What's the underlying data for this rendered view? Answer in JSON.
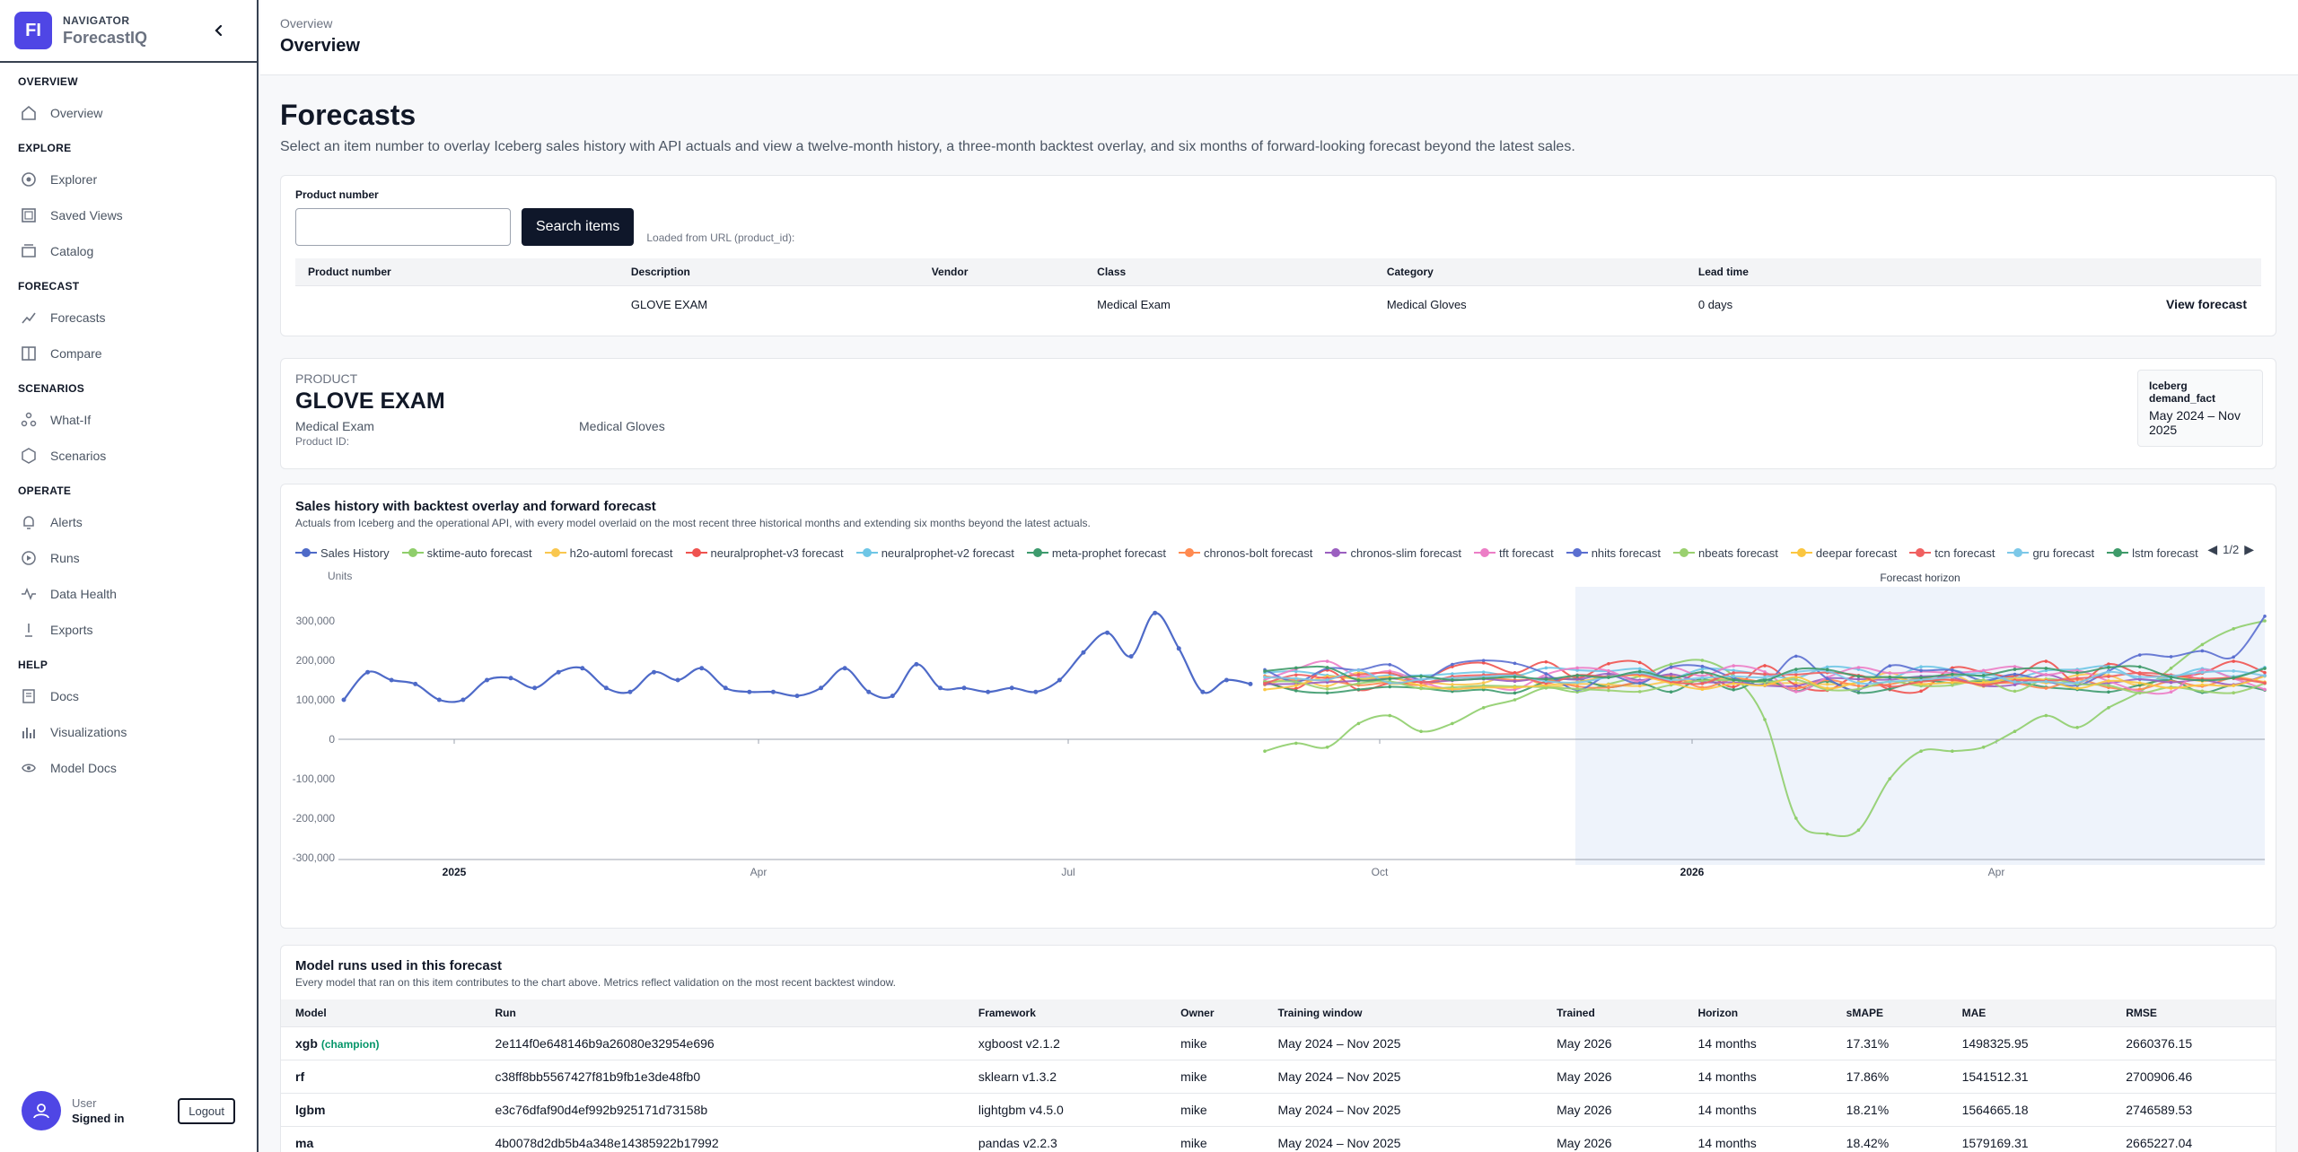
{
  "brand": {
    "initials": "FI",
    "kicker": "NAVIGATOR",
    "name": "ForecastIQ"
  },
  "nav": {
    "sections": [
      {
        "title": "OVERVIEW",
        "items": [
          {
            "label": "Overview",
            "icon": "home-icon"
          }
        ]
      },
      {
        "title": "EXPLORE",
        "items": [
          {
            "label": "Explorer",
            "icon": "explorer-icon"
          },
          {
            "label": "Saved Views",
            "icon": "saved-views-icon"
          },
          {
            "label": "Catalog",
            "icon": "catalog-icon"
          }
        ]
      },
      {
        "title": "FORECAST",
        "items": [
          {
            "label": "Forecasts",
            "icon": "forecasts-icon"
          },
          {
            "label": "Compare",
            "icon": "compare-icon"
          }
        ]
      },
      {
        "title": "SCENARIOS",
        "items": [
          {
            "label": "What-If",
            "icon": "what-if-icon"
          },
          {
            "label": "Scenarios",
            "icon": "scenarios-icon"
          }
        ]
      },
      {
        "title": "OPERATE",
        "items": [
          {
            "label": "Alerts",
            "icon": "alerts-icon"
          },
          {
            "label": "Runs",
            "icon": "runs-icon"
          },
          {
            "label": "Data Health",
            "icon": "data-health-icon"
          },
          {
            "label": "Exports",
            "icon": "exports-icon"
          }
        ]
      },
      {
        "title": "HELP",
        "items": [
          {
            "label": "Docs",
            "icon": "docs-icon"
          },
          {
            "label": "Visualizations",
            "icon": "visualizations-icon"
          },
          {
            "label": "Model Docs",
            "icon": "model-docs-icon"
          }
        ]
      }
    ]
  },
  "user": {
    "name": "User",
    "status": "Signed in",
    "logout": "Logout"
  },
  "topbar": {
    "breadcrumb": "Overview",
    "title": "Overview"
  },
  "page": {
    "title": "Forecasts",
    "subtitle": "Select an item number to overlay Iceberg sales history with API actuals and view a twelve-month history, a three-month backtest overlay, and six months of forward-looking forecast beyond the latest sales."
  },
  "search": {
    "label": "Product number",
    "value": "",
    "button": "Search items",
    "note": "Loaded from URL (product_id):",
    "columns": [
      "Product number",
      "Description",
      "Vendor",
      "Class",
      "Category",
      "Lead time"
    ],
    "row": {
      "product_number": "",
      "description": "GLOVE EXAM",
      "vendor": "",
      "class": "Medical Exam",
      "category": "Medical Gloves",
      "lead_time": "0 days",
      "action": "View forecast"
    }
  },
  "product": {
    "kicker": "PRODUCT",
    "name": "GLOVE EXAM",
    "class": "Medical Exam",
    "category": "Medical Gloves",
    "id_label": "Product ID:",
    "source_title": "Iceberg demand_fact",
    "source_range": "May 2024 – Nov 2025"
  },
  "chart": {
    "title": "Sales history with backtest overlay and forward forecast",
    "subtitle": "Actuals from Iceberg and the operational API, with every model overlaid on the most recent three historical months and extending six months beyond the latest actuals.",
    "pager": "1/2",
    "horizon_label": "Forecast horizon",
    "ylabel": "Units",
    "y_ticks": [
      "300,000",
      "200,000",
      "100,000",
      "0",
      "-100,000",
      "-200,000",
      "-300,000"
    ],
    "y_values": [
      300000,
      200000,
      100000,
      0,
      -100000,
      -200000,
      -300000
    ],
    "x_ticks": [
      "2025",
      "Apr",
      "Jul",
      "Oct",
      "2026",
      "Apr"
    ],
    "bold_ticks": [
      "2025",
      "2026"
    ]
  },
  "chart_data": {
    "type": "line",
    "ylim": [
      -300000,
      300000
    ],
    "legend": "top",
    "grid": false,
    "series": [
      {
        "name": "Sales History",
        "color": "#4e6ac8"
      },
      {
        "name": "sktime-auto forecast",
        "color": "#8fce6b"
      },
      {
        "name": "h2o-automl forecast",
        "color": "#f9c74f"
      },
      {
        "name": "neuralprophet-v3 forecast",
        "color": "#ef5350"
      },
      {
        "name": "neuralprophet-v2 forecast",
        "color": "#6ec6e6"
      },
      {
        "name": "meta-prophet forecast",
        "color": "#3e9b6e"
      },
      {
        "name": "chronos-bolt forecast",
        "color": "#ff8a50"
      },
      {
        "name": "chronos-slim forecast",
        "color": "#9b5fc0"
      },
      {
        "name": "tft forecast",
        "color": "#ec7ec6"
      },
      {
        "name": "nhits forecast",
        "color": "#5b6fd0"
      },
      {
        "name": "nbeats forecast",
        "color": "#9ad06f"
      },
      {
        "name": "deepar forecast",
        "color": "#fbc640"
      },
      {
        "name": "tcn forecast",
        "color": "#f06060"
      },
      {
        "name": "gru forecast",
        "color": "#7cc8e8"
      },
      {
        "name": "lstm forecast",
        "color": "#3f9b6a"
      }
    ],
    "history_values": [
      100000,
      170000,
      150000,
      140000,
      100000,
      100000,
      150000,
      155000,
      130000,
      170000,
      180000,
      130000,
      120000,
      170000,
      150000,
      180000,
      130000,
      120000,
      120000,
      110000,
      130000,
      180000,
      120000,
      110000,
      190000,
      130000,
      130000,
      120000,
      130000,
      120000,
      150000,
      220000,
      270000,
      210000,
      320000,
      230000,
      120000,
      150000,
      140000
    ],
    "sktime_values": [
      -30000,
      -10000,
      -20000,
      40000,
      60000,
      20000,
      40000,
      80000,
      100000,
      130000,
      120000,
      140000,
      160000,
      190000,
      200000,
      160000,
      50000,
      -200000,
      -240000,
      -230000,
      -100000,
      -30000,
      -30000,
      -20000,
      20000,
      60000,
      30000,
      80000,
      120000,
      180000,
      240000,
      280000,
      300000
    ]
  },
  "runs": {
    "title": "Model runs used in this forecast",
    "subtitle": "Every model that ran on this item contributes to the chart above. Metrics reflect validation on the most recent backtest window.",
    "columns": [
      "Model",
      "Run",
      "Framework",
      "Owner",
      "Training window",
      "Trained",
      "Horizon",
      "sMAPE",
      "MAE",
      "RMSE"
    ],
    "champion_label": "(champion)",
    "rows": [
      {
        "model": "xgb",
        "champion": true,
        "run": "2e114f0e648146b9a26080e32954e696",
        "framework": "xgboost v2.1.2",
        "owner": "mike",
        "window": "May 2024 – Nov 2025",
        "trained": "May 2026",
        "horizon": "14 months",
        "smape": "17.31%",
        "mae": "1498325.95",
        "rmse": "2660376.15"
      },
      {
        "model": "rf",
        "champion": false,
        "run": "c38ff8bb5567427f81b9fb1e3de48fb0",
        "framework": "sklearn v1.3.2",
        "owner": "mike",
        "window": "May 2024 – Nov 2025",
        "trained": "May 2026",
        "horizon": "14 months",
        "smape": "17.86%",
        "mae": "1541512.31",
        "rmse": "2700906.46"
      },
      {
        "model": "lgbm",
        "champion": false,
        "run": "e3c76dfaf90d4ef992b925171d73158b",
        "framework": "lightgbm v4.5.0",
        "owner": "mike",
        "window": "May 2024 – Nov 2025",
        "trained": "May 2026",
        "horizon": "14 months",
        "smape": "18.21%",
        "mae": "1564665.18",
        "rmse": "2746589.53"
      },
      {
        "model": "ma",
        "champion": false,
        "run": "4b0078d2db5b4a348e14385922b17992",
        "framework": "pandas v2.2.3",
        "owner": "mike",
        "window": "May 2024 – Nov 2025",
        "trained": "May 2026",
        "horizon": "14 months",
        "smape": "18.42%",
        "mae": "1579169.31",
        "rmse": "2665227.04"
      }
    ]
  }
}
